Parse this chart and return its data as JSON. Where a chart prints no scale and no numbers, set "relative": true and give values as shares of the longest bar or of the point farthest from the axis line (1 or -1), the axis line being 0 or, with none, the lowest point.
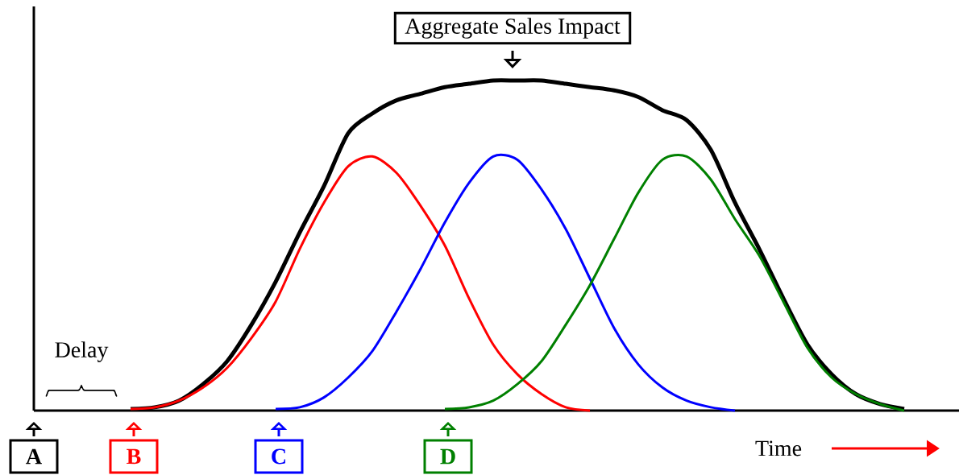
{
  "chart_data": {
    "type": "line",
    "relative": true,
    "categories": [
      null,
      null,
      null,
      null,
      null,
      null,
      null,
      null,
      null,
      null,
      null,
      null,
      null,
      null,
      null,
      null,
      null,
      null,
      null,
      null,
      null,
      null,
      null,
      null,
      null,
      null,
      null,
      null,
      null,
      null,
      null,
      null,
      null,
      null,
      null,
      null,
      null,
      null,
      null
    ],
    "series": [
      {
        "color": "#000000",
        "values": [
          null,
          null,
          null,
          null,
          0.005,
          0.01,
          0.03,
          0.08,
          0.15,
          0.26,
          0.39,
          0.54,
          0.68,
          0.84,
          0.9,
          0.94,
          0.96,
          0.98,
          0.99,
          1.0,
          1.0,
          1.0,
          0.99,
          0.98,
          0.97,
          0.95,
          0.91,
          0.88,
          0.79,
          0.63,
          0.49,
          0.34,
          0.2,
          0.11,
          0.05,
          0.02,
          0.005,
          null,
          null
        ]
      },
      {
        "color": "#ff0000",
        "values": [
          null,
          null,
          null,
          null,
          0.005,
          0.01,
          0.03,
          0.07,
          0.13,
          0.22,
          0.33,
          0.49,
          0.63,
          0.74,
          0.77,
          0.72,
          0.62,
          0.5,
          0.34,
          0.2,
          0.11,
          0.05,
          0.01,
          0,
          null,
          null,
          null,
          null,
          null,
          null,
          null,
          null,
          null,
          null,
          null,
          null,
          null,
          null,
          null
        ]
      },
      {
        "color": "#0000ff",
        "values": [
          null,
          null,
          null,
          null,
          null,
          null,
          null,
          null,
          null,
          null,
          0.005,
          0.01,
          0.04,
          0.1,
          0.18,
          0.3,
          0.43,
          0.57,
          0.69,
          0.77,
          0.76,
          0.67,
          0.55,
          0.4,
          0.25,
          0.14,
          0.07,
          0.03,
          0.01,
          0,
          null,
          null,
          null,
          null,
          null,
          null,
          null,
          null,
          null
        ]
      },
      {
        "color": "#008000",
        "values": [
          null,
          null,
          null,
          null,
          null,
          null,
          null,
          null,
          null,
          null,
          null,
          null,
          null,
          null,
          null,
          null,
          null,
          0.005,
          0.01,
          0.03,
          0.08,
          0.15,
          0.26,
          0.38,
          0.52,
          0.66,
          0.76,
          0.77,
          0.7,
          0.58,
          0.47,
          0.33,
          0.19,
          0.1,
          0.05,
          0.02,
          0,
          null,
          null
        ]
      }
    ],
    "annotations": [
      "Aggregate Sales Impact",
      "Delay",
      "Time",
      "A",
      "B",
      "C",
      "D"
    ]
  }
}
